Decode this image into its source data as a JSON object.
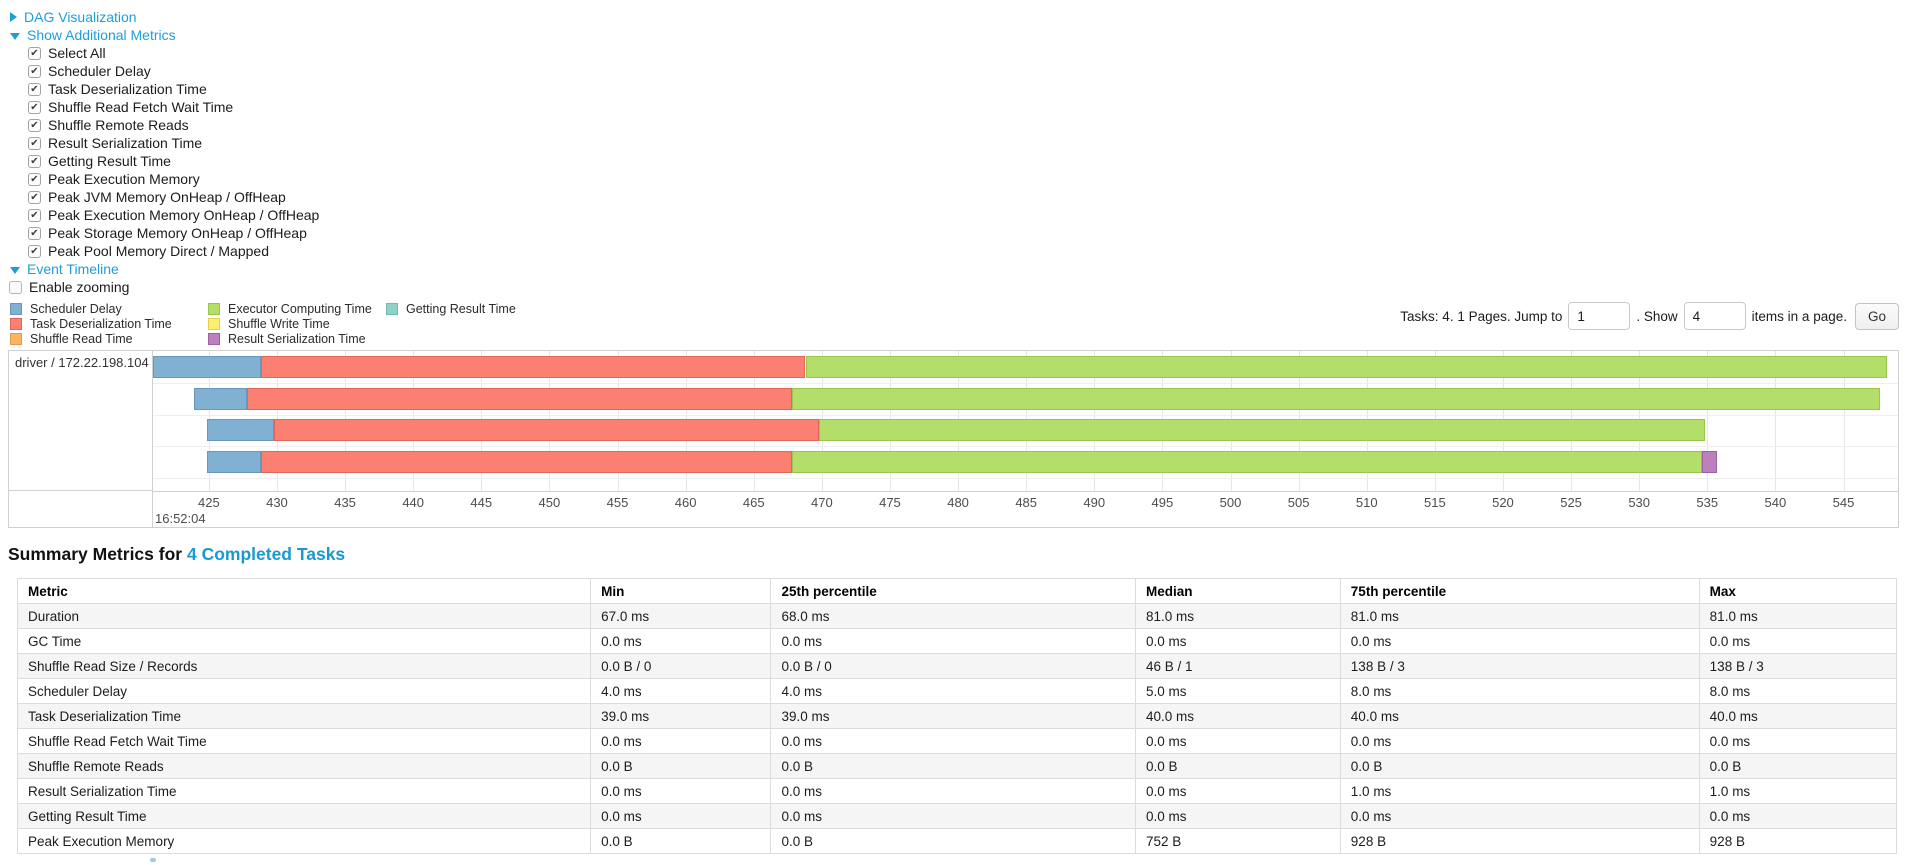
{
  "colors": {
    "link": "#1e9ed9",
    "title_link": "#1899d4",
    "axis_text": "#4d4d4d",
    "table_stripe": "#f5f5f5"
  },
  "toggles": {
    "dag": "DAG Visualization",
    "metrics": "Show Additional Metrics",
    "timeline": "Event Timeline"
  },
  "metric_checkboxes": [
    "Select All",
    "Scheduler Delay",
    "Task Deserialization Time",
    "Shuffle Read Fetch Wait Time",
    "Shuffle Remote Reads",
    "Result Serialization Time",
    "Getting Result Time",
    "Peak Execution Memory",
    "Peak JVM Memory OnHeap / OffHeap",
    "Peak Execution Memory OnHeap / OffHeap",
    "Peak Storage Memory OnHeap / OffHeap",
    "Peak Pool Memory Direct / Mapped"
  ],
  "enable_zooming_label": "Enable zooming",
  "legend": {
    "entries": {
      "scheduler_delay": {
        "label": "Scheduler Delay",
        "color": "#80B1D3",
        "border": "#6b98b8"
      },
      "task_deserialization": {
        "label": "Task Deserialization Time",
        "color": "#FB8072",
        "border": "#e0655a"
      },
      "shuffle_read": {
        "label": "Shuffle Read Time",
        "color": "#FDB462",
        "border": "#e39c46"
      },
      "executor_computing": {
        "label": "Executor Computing Time",
        "color": "#B3DE69",
        "border": "#99c54b"
      },
      "shuffle_write": {
        "label": "Shuffle Write Time",
        "color": "#FFED6F",
        "border": "#e3d04f"
      },
      "result_serialization": {
        "label": "Result Serialization Time",
        "color": "#BC80BD",
        "border": "#a05fa2"
      },
      "getting_result": {
        "label": "Getting Result Time",
        "color": "#8DD3C7",
        "border": "#6fbcae"
      }
    },
    "columns": [
      [
        "scheduler_delay",
        "task_deserialization",
        "shuffle_read"
      ],
      [
        "executor_computing",
        "shuffle_write",
        "result_serialization"
      ],
      [
        "getting_result"
      ]
    ]
  },
  "pagination": {
    "prefix": "Tasks: 4. 1 Pages. Jump to",
    "jump_value": "1",
    "middle": ". Show",
    "show_value": "4",
    "suffix": "items in a page.",
    "go": "Go"
  },
  "chart_data": {
    "type": "timeline",
    "row_label": "driver / 172.22.198.104",
    "axis": {
      "start": 420.9,
      "end": 549.0,
      "tick_start": 425,
      "tick_end": 550,
      "tick_step": 5,
      "major_time_label": "16:52:04",
      "units": "ms within second 16:52:04"
    },
    "tasks": [
      {
        "segments": [
          [
            "scheduler_delay",
            420.9,
            428.8
          ],
          [
            "task_deserialization",
            428.8,
            468.8
          ],
          [
            "executor_computing",
            468.8,
            548.2
          ]
        ]
      },
      {
        "segments": [
          [
            "scheduler_delay",
            423.9,
            427.8
          ],
          [
            "task_deserialization",
            427.8,
            467.8
          ],
          [
            "executor_computing",
            467.8,
            547.7
          ]
        ]
      },
      {
        "segments": [
          [
            "scheduler_delay",
            424.9,
            429.8
          ],
          [
            "task_deserialization",
            429.8,
            469.8
          ],
          [
            "executor_computing",
            469.8,
            534.8
          ]
        ]
      },
      {
        "segments": [
          [
            "scheduler_delay",
            424.9,
            428.8
          ],
          [
            "task_deserialization",
            428.8,
            467.8
          ],
          [
            "executor_computing",
            467.8,
            534.6
          ],
          [
            "result_serialization",
            534.6,
            535.7
          ]
        ]
      }
    ]
  },
  "summary": {
    "title_prefix": "Summary Metrics for",
    "title_link": "4 Completed Tasks",
    "columns": [
      "Metric",
      "Min",
      "25th percentile",
      "Median",
      "75th percentile",
      "Max"
    ],
    "col_widths_pct": [
      30.5,
      9.6,
      19.4,
      10.9,
      19.1,
      10.5
    ],
    "rows": [
      [
        "Duration",
        "67.0 ms",
        "68.0 ms",
        "81.0 ms",
        "81.0 ms",
        "81.0 ms"
      ],
      [
        "GC Time",
        "0.0 ms",
        "0.0 ms",
        "0.0 ms",
        "0.0 ms",
        "0.0 ms"
      ],
      [
        "Shuffle Read Size / Records",
        "0.0 B / 0",
        "0.0 B / 0",
        "46 B / 1",
        "138 B / 3",
        "138 B / 3"
      ],
      [
        "Scheduler Delay",
        "4.0 ms",
        "4.0 ms",
        "5.0 ms",
        "8.0 ms",
        "8.0 ms"
      ],
      [
        "Task Deserialization Time",
        "39.0 ms",
        "39.0 ms",
        "40.0 ms",
        "40.0 ms",
        "40.0 ms"
      ],
      [
        "Shuffle Read Fetch Wait Time",
        "0.0 ms",
        "0.0 ms",
        "0.0 ms",
        "0.0 ms",
        "0.0 ms"
      ],
      [
        "Shuffle Remote Reads",
        "0.0 B",
        "0.0 B",
        "0.0 B",
        "0.0 B",
        "0.0 B"
      ],
      [
        "Result Serialization Time",
        "0.0 ms",
        "0.0 ms",
        "0.0 ms",
        "1.0 ms",
        "1.0 ms"
      ],
      [
        "Getting Result Time",
        "0.0 ms",
        "0.0 ms",
        "0.0 ms",
        "0.0 ms",
        "0.0 ms"
      ],
      [
        "Peak Execution Memory",
        "0.0 B",
        "0.0 B",
        "752 B",
        "928 B",
        "928 B"
      ]
    ]
  }
}
